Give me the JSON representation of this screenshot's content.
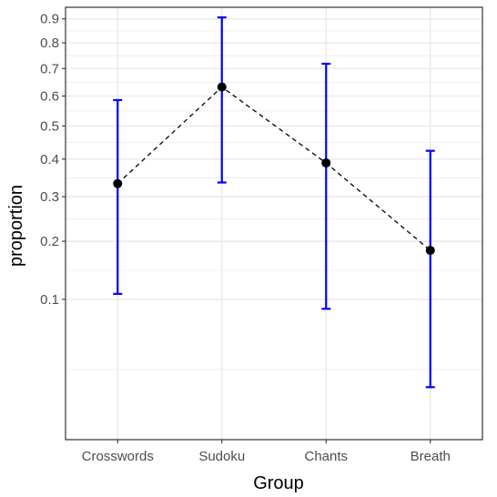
{
  "chart_data": {
    "type": "scatter",
    "xlabel": "Group",
    "ylabel": "proportion",
    "categories": [
      "Crosswords",
      "Sudoku",
      "Chants",
      "Breath"
    ],
    "series": [
      {
        "values": [
          0.333,
          0.632,
          0.389,
          0.182
        ],
        "error_low": [
          0.108,
          0.336,
          0.087,
          0.014
        ],
        "error_high": [
          0.586,
          0.906,
          0.718,
          0.424
        ],
        "connector": "dashed"
      }
    ],
    "y_scale": "sqrt",
    "ylim": [
      0.0,
      0.95
    ],
    "yticks": [
      0.1,
      0.2,
      0.3,
      0.4,
      0.5,
      0.6,
      0.7,
      0.8,
      0.9
    ],
    "ytick_labels": [
      "0.1",
      "0.2",
      "0.3",
      "0.4",
      "0.5",
      "0.6",
      "0.7",
      "0.8",
      "0.9"
    ],
    "grid": true,
    "colors": {
      "error_bar": "#0000ff",
      "point": "#000000",
      "line": "#000000",
      "grid": "#ebebeb",
      "panel_border": "#333333"
    }
  }
}
